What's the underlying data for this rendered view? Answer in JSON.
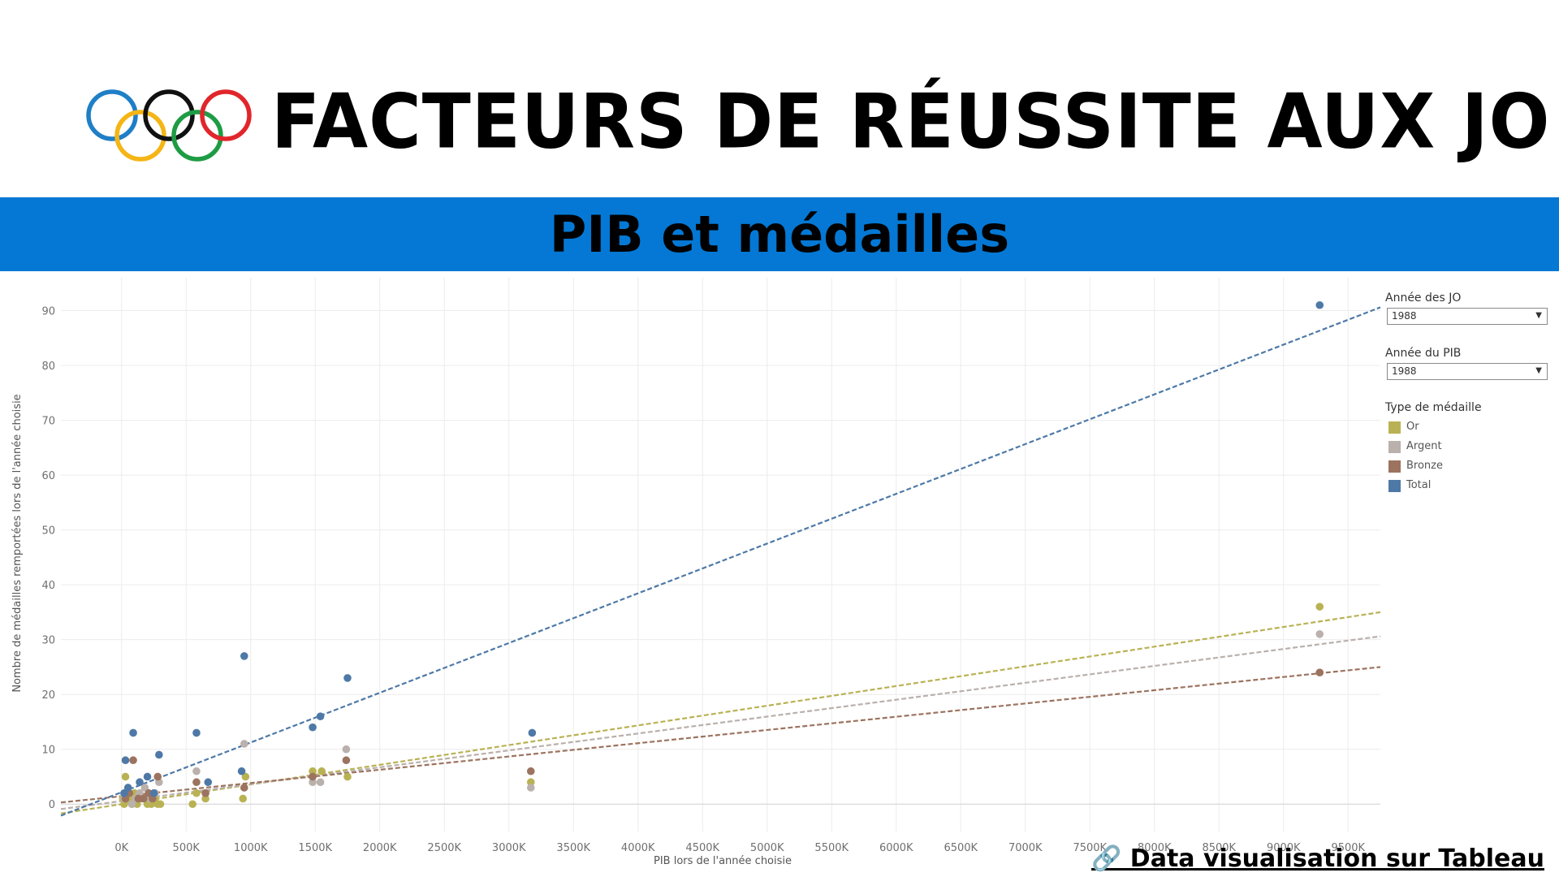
{
  "header": {
    "title": "FACTEURS DE RÉUSSITE AUX JO",
    "logo_ring_colors": [
      "#1f7fc6",
      "#f4b515",
      "#111111",
      "#1e9c44",
      "#e1262b"
    ],
    "logo_icon": "olympic-rings-icon"
  },
  "banner": {
    "title": "PIB et médailles",
    "color": "#0478d4"
  },
  "filters": [
    {
      "label": "Année des JO",
      "value": "1988"
    },
    {
      "label": "Année du PIB",
      "value": "1988"
    }
  ],
  "legend": {
    "title": "Type de médaille",
    "items": [
      {
        "label": "Or",
        "color": "#b9b254"
      },
      {
        "label": "Argent",
        "color": "#bab0ac"
      },
      {
        "label": "Bronze",
        "color": "#9c735f"
      },
      {
        "label": "Total",
        "color": "#4e79a7"
      }
    ]
  },
  "chart_data": {
    "type": "scatter",
    "xlabel": "PIB lors de l'année choisie",
    "ylabel": "Nombre de médailles remportées lors de l'année choisie",
    "xlim": [
      -470,
      9750
    ],
    "ylim": [
      -5,
      96
    ],
    "x_ticks": [
      "0K",
      "500K",
      "1000K",
      "1500K",
      "2000K",
      "2500K",
      "3000K",
      "3500K",
      "4000K",
      "4500K",
      "5000K",
      "5500K",
      "6000K",
      "6500K",
      "7000K",
      "7500K",
      "8000K",
      "8500K",
      "9000K",
      "9500K"
    ],
    "y_ticks": [
      0,
      10,
      20,
      30,
      40,
      50,
      60,
      70,
      80,
      90
    ],
    "grid": true,
    "legend_position": "right",
    "trend_lines": "dashed",
    "series": [
      {
        "name": "Or",
        "color": "#b9b254",
        "trend": [
          [
            -470,
            -1.7
          ],
          [
            9750,
            35
          ]
        ],
        "points": [
          [
            10,
            1
          ],
          [
            20,
            0
          ],
          [
            30,
            5
          ],
          [
            60,
            1
          ],
          [
            80,
            0
          ],
          [
            100,
            2
          ],
          [
            120,
            0
          ],
          [
            150,
            1
          ],
          [
            180,
            1
          ],
          [
            200,
            0
          ],
          [
            230,
            0
          ],
          [
            260,
            1
          ],
          [
            280,
            0
          ],
          [
            300,
            0
          ],
          [
            550,
            0
          ],
          [
            580,
            2
          ],
          [
            650,
            1
          ],
          [
            940,
            1
          ],
          [
            960,
            5
          ],
          [
            1480,
            6
          ],
          [
            1550,
            6
          ],
          [
            1750,
            5
          ],
          [
            3170,
            4
          ],
          [
            9280,
            36
          ]
        ]
      },
      {
        "name": "Argent",
        "color": "#bab0ac",
        "trend": [
          [
            -470,
            -0.9
          ],
          [
            9750,
            30.6
          ]
        ],
        "points": [
          [
            20,
            1
          ],
          [
            50,
            2
          ],
          [
            80,
            0
          ],
          [
            110,
            1
          ],
          [
            140,
            2
          ],
          [
            180,
            3
          ],
          [
            220,
            1
          ],
          [
            260,
            2
          ],
          [
            290,
            4
          ],
          [
            580,
            6
          ],
          [
            650,
            2
          ],
          [
            950,
            11
          ],
          [
            1480,
            4
          ],
          [
            1540,
            4
          ],
          [
            1740,
            10
          ],
          [
            3170,
            3
          ],
          [
            9280,
            31
          ]
        ]
      },
      {
        "name": "Bronze",
        "color": "#9c735f",
        "trend": [
          [
            -470,
            0.3
          ],
          [
            9750,
            25
          ]
        ],
        "points": [
          [
            30,
            1
          ],
          [
            60,
            2
          ],
          [
            90,
            8
          ],
          [
            130,
            1
          ],
          [
            170,
            1
          ],
          [
            210,
            2
          ],
          [
            240,
            1
          ],
          [
            280,
            5
          ],
          [
            580,
            4
          ],
          [
            650,
            2
          ],
          [
            950,
            3
          ],
          [
            1480,
            5
          ],
          [
            1740,
            8
          ],
          [
            3170,
            6
          ],
          [
            9280,
            24
          ]
        ]
      },
      {
        "name": "Total",
        "color": "#4e79a7",
        "trend": [
          [
            -470,
            -2.1
          ],
          [
            9750,
            90.6
          ]
        ],
        "points": [
          [
            20,
            2
          ],
          [
            30,
            8
          ],
          [
            50,
            3
          ],
          [
            90,
            13
          ],
          [
            140,
            4
          ],
          [
            200,
            5
          ],
          [
            250,
            2
          ],
          [
            290,
            9
          ],
          [
            580,
            13
          ],
          [
            670,
            4
          ],
          [
            930,
            6
          ],
          [
            950,
            27
          ],
          [
            1480,
            14
          ],
          [
            1540,
            16
          ],
          [
            1750,
            23
          ],
          [
            3180,
            13
          ],
          [
            9280,
            91
          ]
        ]
      }
    ]
  },
  "footer": {
    "link_text": "🔗 Data visualisation sur Tableau"
  }
}
